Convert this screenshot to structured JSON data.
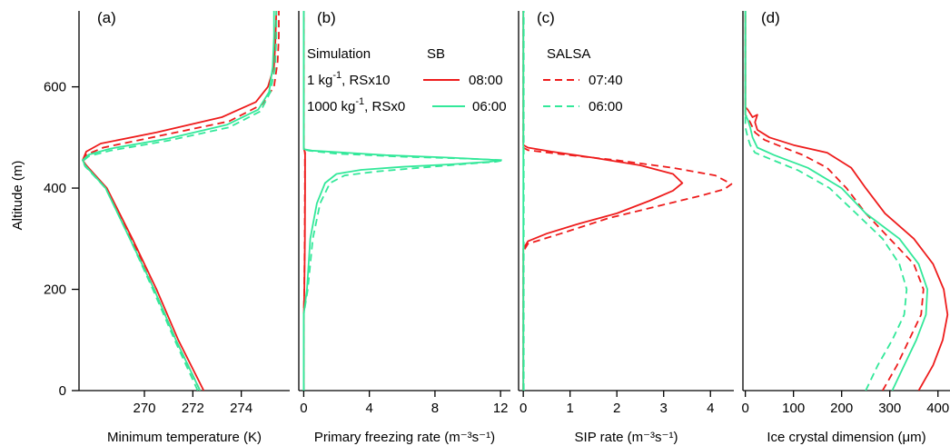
{
  "colors": {
    "sb": "#ee1c1c",
    "salsa": "#ee1c1c",
    "case2": "#33e89a",
    "axis": "#000000"
  },
  "y_axis": {
    "label": "Altitude (m)",
    "range": [
      0,
      750
    ],
    "ticks": [
      0,
      200,
      400,
      600
    ]
  },
  "legend": {
    "header_col1": "Simulation",
    "header_sb": "SB",
    "header_salsa": "SALSA",
    "rows": [
      {
        "base": "1 kg",
        "sup": "-1",
        "rest": ", RSx10",
        "sb_time": "08:00",
        "salsa_time": "07:40",
        "color": "#ee1c1c"
      },
      {
        "base": "1000 kg",
        "sup": "-1",
        "rest": ", RSx0",
        "sb_time": "06:00",
        "salsa_time": "06:00",
        "color": "#33e89a"
      }
    ]
  },
  "chart_data": [
    {
      "type": "line",
      "panel_label": "(a)",
      "xlabel": "Minimum temperature (K)",
      "xlim": [
        267.3,
        276.0
      ],
      "ylim": [
        0,
        750
      ],
      "x_ticks": [
        270,
        272,
        274
      ],
      "series": [
        {
          "name": "1 kg-1, RSx10 SB 08:00",
          "color": "#ee1c1c",
          "dash": "solid",
          "points": [
            [
              272.45,
              0
            ],
            [
              271.4,
              100
            ],
            [
              270.5,
              200
            ],
            [
              269.5,
              300
            ],
            [
              268.45,
              400
            ],
            [
              267.6,
              445
            ],
            [
              267.45,
              455
            ],
            [
              267.6,
              472
            ],
            [
              268.2,
              488
            ],
            [
              270.5,
              510
            ],
            [
              273.2,
              540
            ],
            [
              274.6,
              570
            ],
            [
              275.1,
              600
            ],
            [
              275.35,
              640
            ],
            [
              275.4,
              680
            ],
            [
              275.45,
              750
            ]
          ]
        },
        {
          "name": "1 kg-1, RSx10 SALSA 07:40",
          "color": "#ee1c1c",
          "dash": "dashed",
          "points": [
            [
              272.3,
              0
            ],
            [
              271.3,
              100
            ],
            [
              270.4,
              200
            ],
            [
              269.45,
              300
            ],
            [
              268.4,
              400
            ],
            [
              267.6,
              442
            ],
            [
              267.45,
              452
            ],
            [
              267.6,
              466
            ],
            [
              268.3,
              480
            ],
            [
              270.6,
              503
            ],
            [
              273.5,
              532
            ],
            [
              274.85,
              565
            ],
            [
              275.35,
              600
            ],
            [
              275.5,
              650
            ],
            [
              275.55,
              700
            ],
            [
              275.55,
              750
            ]
          ]
        },
        {
          "name": "1000 kg-1, RSx0 SB 06:00",
          "color": "#33e89a",
          "dash": "solid",
          "points": [
            [
              272.3,
              0
            ],
            [
              271.3,
              100
            ],
            [
              270.4,
              200
            ],
            [
              269.4,
              300
            ],
            [
              268.4,
              400
            ],
            [
              267.55,
              445
            ],
            [
              267.45,
              455
            ],
            [
              267.7,
              466
            ],
            [
              268.6,
              478
            ],
            [
              271.0,
              498
            ],
            [
              273.4,
              525
            ],
            [
              274.7,
              555
            ],
            [
              275.15,
              590
            ],
            [
              275.3,
              640
            ],
            [
              275.35,
              700
            ],
            [
              275.35,
              750
            ]
          ]
        },
        {
          "name": "1000 kg-1, RSx0 SALSA 06:00",
          "color": "#33e89a",
          "dash": "dashed",
          "points": [
            [
              272.2,
              0
            ],
            [
              271.25,
              100
            ],
            [
              270.35,
              200
            ],
            [
              269.4,
              300
            ],
            [
              268.4,
              400
            ],
            [
              267.55,
              443
            ],
            [
              267.45,
              453
            ],
            [
              267.7,
              463
            ],
            [
              268.6,
              474
            ],
            [
              271.0,
              494
            ],
            [
              273.5,
              520
            ],
            [
              274.8,
              552
            ],
            [
              275.2,
              590
            ],
            [
              275.4,
              640
            ],
            [
              275.45,
              700
            ],
            [
              275.45,
              750
            ]
          ]
        }
      ]
    },
    {
      "type": "line",
      "panel_label": "(b)",
      "xlabel": "Primary freezing rate (m⁻³s⁻¹)",
      "xlim": [
        -0.3,
        12.6
      ],
      "ylim": [
        0,
        750
      ],
      "x_ticks": [
        0,
        4,
        8,
        12
      ],
      "series": [
        {
          "name": "1 kg-1, RSx10 SB 08:00",
          "color": "#ee1c1c",
          "dash": "solid",
          "points": [
            [
              0,
              0
            ],
            [
              0,
              140
            ],
            [
              0.04,
              200
            ],
            [
              0.07,
              300
            ],
            [
              0.08,
              400
            ],
            [
              0.08,
              470
            ],
            [
              0,
              480
            ],
            [
              0,
              750
            ]
          ]
        },
        {
          "name": "1 kg-1, RSx10 SALSA 07:40",
          "color": "#ee1c1c",
          "dash": "dashed",
          "points": [
            [
              0,
              0
            ],
            [
              0,
              140
            ],
            [
              0.03,
              200
            ],
            [
              0.06,
              300
            ],
            [
              0.07,
              400
            ],
            [
              0.07,
              470
            ],
            [
              0,
              480
            ],
            [
              0,
              750
            ]
          ]
        },
        {
          "name": "1000 kg-1, RSx0 SB 06:00",
          "color": "#33e89a",
          "dash": "solid",
          "points": [
            [
              0,
              0
            ],
            [
              0,
              150
            ],
            [
              0.2,
              200
            ],
            [
              0.4,
              300
            ],
            [
              0.8,
              370
            ],
            [
              1.3,
              410
            ],
            [
              2.0,
              428
            ],
            [
              3.5,
              436
            ],
            [
              6,
              442
            ],
            [
              9,
              447
            ],
            [
              11.3,
              452
            ],
            [
              12.0,
              455
            ],
            [
              9,
              460
            ],
            [
              5,
              465
            ],
            [
              0.5,
              474
            ],
            [
              0,
              477
            ],
            [
              0,
              750
            ]
          ]
        },
        {
          "name": "1000 kg-1, RSx0 SALSA 06:00",
          "color": "#33e89a",
          "dash": "dashed",
          "points": [
            [
              0,
              0
            ],
            [
              0,
              150
            ],
            [
              0.25,
              200
            ],
            [
              0.55,
              300
            ],
            [
              1.0,
              370
            ],
            [
              1.6,
              410
            ],
            [
              2.5,
              425
            ],
            [
              4.5,
              433
            ],
            [
              7,
              440
            ],
            [
              10,
              448
            ],
            [
              11.7,
              452
            ],
            [
              12.2,
              455
            ],
            [
              10,
              458
            ],
            [
              6,
              462
            ],
            [
              2,
              468
            ],
            [
              0.3,
              474
            ],
            [
              0,
              477
            ],
            [
              0,
              750
            ]
          ]
        }
      ]
    },
    {
      "type": "line",
      "panel_label": "(c)",
      "xlabel": "SIP rate (m⁻³s⁻¹)",
      "xlim": [
        -0.1,
        4.5
      ],
      "ylim": [
        0,
        750
      ],
      "x_ticks": [
        0,
        1,
        2,
        3,
        4
      ],
      "series": [
        {
          "name": "1 kg-1, RSx10 SB 08:00",
          "color": "#ee1c1c",
          "dash": "solid",
          "points": [
            [
              0,
              0
            ],
            [
              0,
              280
            ],
            [
              0.1,
              295
            ],
            [
              0.5,
              310
            ],
            [
              1.2,
              330
            ],
            [
              2.0,
              350
            ],
            [
              2.7,
              375
            ],
            [
              3.2,
              395
            ],
            [
              3.4,
              410
            ],
            [
              3.2,
              428
            ],
            [
              2.5,
              445
            ],
            [
              1.5,
              460
            ],
            [
              0.6,
              472
            ],
            [
              0.1,
              480
            ],
            [
              0,
              485
            ],
            [
              0,
              750
            ]
          ]
        },
        {
          "name": "1 kg-1, RSx10 SALSA 07:40",
          "color": "#ee1c1c",
          "dash": "dashed",
          "points": [
            [
              0,
              0
            ],
            [
              0,
              275
            ],
            [
              0.1,
              290
            ],
            [
              0.8,
              310
            ],
            [
              1.8,
              340
            ],
            [
              2.9,
              365
            ],
            [
              3.8,
              385
            ],
            [
              4.3,
              398
            ],
            [
              4.45,
              408
            ],
            [
              4.1,
              425
            ],
            [
              3.2,
              440
            ],
            [
              2.0,
              455
            ],
            [
              0.8,
              467
            ],
            [
              0.1,
              475
            ],
            [
              0,
              480
            ],
            [
              0,
              750
            ]
          ]
        },
        {
          "name": "1000 kg-1, RSx0 SB 06:00",
          "color": "#33e89a",
          "dash": "solid",
          "points": [
            [
              0,
              0
            ],
            [
              0,
              750
            ]
          ]
        },
        {
          "name": "1000 kg-1, RSx0 SALSA 06:00",
          "color": "#33e89a",
          "dash": "dashed",
          "points": [
            [
              0.01,
              0
            ],
            [
              0.01,
              750
            ]
          ]
        }
      ]
    },
    {
      "type": "line",
      "panel_label": "(d)",
      "xlabel": "Ice crystal dimension (μm)",
      "xlim": [
        -5,
        425
      ],
      "ylim": [
        0,
        750
      ],
      "x_ticks": [
        0,
        100,
        200,
        300,
        400
      ],
      "series": [
        {
          "name": "1 kg-1, RSx10 SB 08:00",
          "color": "#ee1c1c",
          "dash": "solid",
          "points": [
            [
              360,
              0
            ],
            [
              390,
              50
            ],
            [
              410,
              100
            ],
            [
              420,
              150
            ],
            [
              412,
              200
            ],
            [
              390,
              250
            ],
            [
              350,
              300
            ],
            [
              290,
              350
            ],
            [
              250,
              400
            ],
            [
              220,
              440
            ],
            [
              170,
              470
            ],
            [
              100,
              485
            ],
            [
              50,
              500
            ],
            [
              25,
              515
            ],
            [
              20,
              530
            ],
            [
              25,
              545
            ],
            [
              15,
              540
            ],
            [
              5,
              555
            ],
            [
              0,
              560
            ],
            [
              0,
              750
            ]
          ]
        },
        {
          "name": "1 kg-1, RSx10 SALSA 07:40",
          "color": "#ee1c1c",
          "dash": "dashed",
          "points": [
            [
              285,
              0
            ],
            [
              315,
              50
            ],
            [
              340,
              100
            ],
            [
              365,
              150
            ],
            [
              370,
              200
            ],
            [
              350,
              250
            ],
            [
              300,
              300
            ],
            [
              250,
              350
            ],
            [
              210,
              400
            ],
            [
              170,
              440
            ],
            [
              120,
              465
            ],
            [
              80,
              480
            ],
            [
              40,
              495
            ],
            [
              20,
              510
            ],
            [
              10,
              530
            ],
            [
              0,
              545
            ],
            [
              0,
              750
            ]
          ]
        },
        {
          "name": "1000 kg-1, RSx0 SB 06:00",
          "color": "#33e89a",
          "dash": "solid",
          "points": [
            [
              305,
              0
            ],
            [
              330,
              50
            ],
            [
              355,
              100
            ],
            [
              375,
              150
            ],
            [
              378,
              200
            ],
            [
              360,
              250
            ],
            [
              320,
              300
            ],
            [
              250,
              350
            ],
            [
              200,
              400
            ],
            [
              130,
              440
            ],
            [
              60,
              465
            ],
            [
              25,
              480
            ],
            [
              15,
              500
            ],
            [
              10,
              520
            ],
            [
              5,
              535
            ],
            [
              0,
              545
            ],
            [
              0,
              750
            ]
          ]
        },
        {
          "name": "1000 kg-1, RSx0 SALSA 06:00",
          "color": "#33e89a",
          "dash": "dashed",
          "points": [
            [
              250,
              0
            ],
            [
              275,
              50
            ],
            [
              305,
              100
            ],
            [
              330,
              150
            ],
            [
              335,
              200
            ],
            [
              320,
              250
            ],
            [
              285,
              300
            ],
            [
              230,
              350
            ],
            [
              175,
              400
            ],
            [
              110,
              435
            ],
            [
              50,
              458
            ],
            [
              20,
              470
            ],
            [
              10,
              485
            ],
            [
              5,
              500
            ],
            [
              0,
              520
            ],
            [
              0,
              750
            ]
          ]
        }
      ]
    }
  ]
}
